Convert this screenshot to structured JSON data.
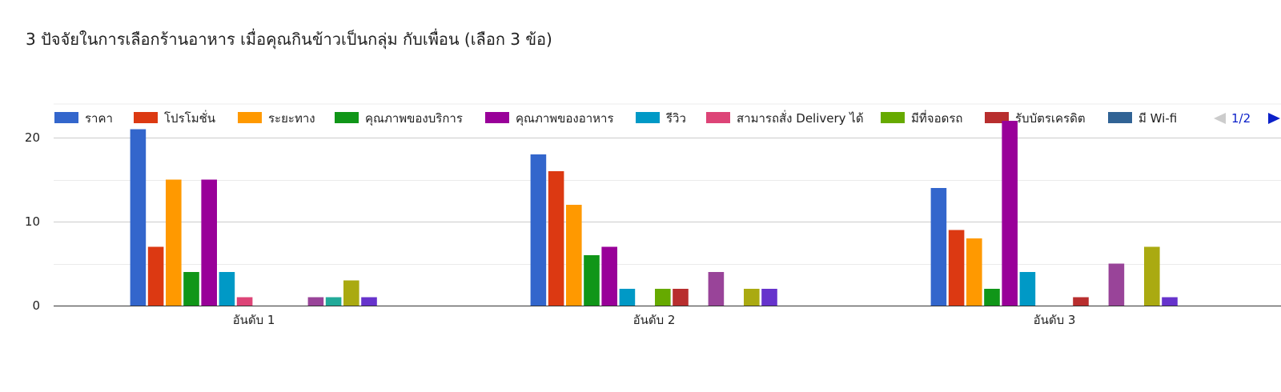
{
  "title": "3 ปัจจัยในการเลือกร้านอาหาร เมื่อคุณกินข้าวเป็นกลุ่ม กับเพื่อน (เลือก 3 ข้อ)",
  "legend": {
    "page_label": "1/2",
    "prev_icon": "triangle-left-icon",
    "next_icon": "triangle-right-icon",
    "prev_color": "#cccccc",
    "next_color": "#0b20c9"
  },
  "chart_data": {
    "type": "bar",
    "categories": [
      "อันดับ 1",
      "อันดับ 2",
      "อันดับ 3"
    ],
    "ylim": [
      0,
      24
    ],
    "yticks": [
      0,
      10,
      20
    ],
    "grid": true,
    "legend_position": "top",
    "series": [
      {
        "name": "ราคา",
        "color": "#3366cc",
        "values": [
          21,
          18,
          14
        ]
      },
      {
        "name": "โปรโมชั่น",
        "color": "#dc3912",
        "values": [
          7,
          16,
          9
        ]
      },
      {
        "name": "ระยะทาง",
        "color": "#ff9900",
        "values": [
          15,
          12,
          8
        ]
      },
      {
        "name": "คุณภาพของบริการ",
        "color": "#109618",
        "values": [
          4,
          6,
          2
        ]
      },
      {
        "name": "คุณภาพของอาหาร",
        "color": "#990099",
        "values": [
          15,
          7,
          22
        ]
      },
      {
        "name": "รีวิว",
        "color": "#0099c6",
        "values": [
          4,
          2,
          4
        ]
      },
      {
        "name": "สามารถสั่ง Delivery ได้",
        "color": "#dd4477",
        "values": [
          1,
          0,
          0
        ]
      },
      {
        "name": "มีที่จอดรถ",
        "color": "#66aa00",
        "values": [
          0,
          2,
          0
        ]
      },
      {
        "name": "รับบัตรเครดิต",
        "color": "#b82e2e",
        "values": [
          0,
          2,
          1
        ]
      },
      {
        "name": "มี Wi-fi",
        "color": "#316395",
        "values": [
          0,
          0,
          0
        ]
      },
      {
        "name": "",
        "color": "#994499",
        "values": [
          1,
          4,
          5
        ]
      },
      {
        "name": "",
        "color": "#22aa99",
        "values": [
          1,
          0,
          0
        ]
      },
      {
        "name": "",
        "color": "#aaaa11",
        "values": [
          3,
          2,
          7
        ]
      },
      {
        "name": "",
        "color": "#6633cc",
        "values": [
          1,
          2,
          1
        ]
      }
    ]
  }
}
